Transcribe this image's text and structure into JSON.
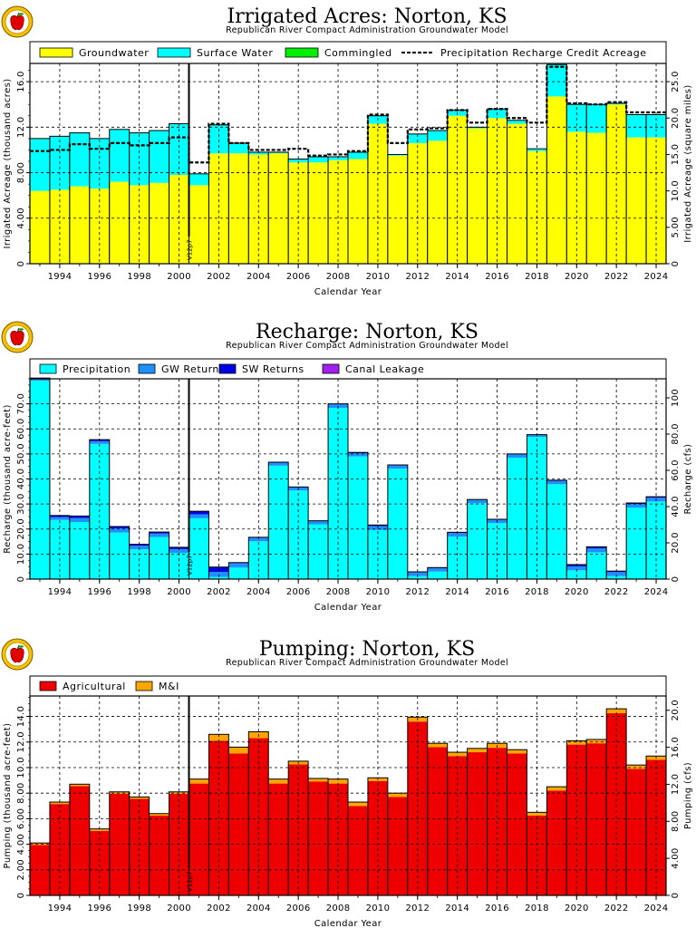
{
  "logo_icon": "apple-logo-icon",
  "colors": {
    "groundwater": "#ffff00",
    "surface_water": "#00ffff",
    "commingled": "#00ee00",
    "precipitation": "#00ffff",
    "gw_returns": "#1e90ff",
    "sw_returns": "#0000e6",
    "canal_leakage": "#a020f0",
    "agricultural": "#ee0000",
    "mandi": "#ffa500"
  },
  "chart_data": [
    {
      "type": "bar",
      "stacked": true,
      "title": "Irrigated Acres: Norton, KS",
      "subtitle": "Republican River Compact Administration Groundwater Model",
      "xlabel": "Calendar Year",
      "ylabel": "Irrigated Acreage (thousand acres)",
      "ylabel_right": "Irrigated Acreage (square miles)",
      "ylim": [
        0,
        17.6
      ],
      "yticks": [
        "0",
        "4.00",
        "8.00",
        "12.0",
        "16.0"
      ],
      "ylim_right": [
        0,
        27.5
      ],
      "yticks_right": [
        "0",
        "5.00",
        "10.0",
        "15.0",
        "20.0",
        "25.0"
      ],
      "grid": true,
      "legend_position": "top",
      "x": [
        1993,
        1994,
        1995,
        1996,
        1997,
        1998,
        1999,
        2000,
        2001,
        2002,
        2003,
        2004,
        2005,
        2006,
        2007,
        2008,
        2009,
        2010,
        2011,
        2012,
        2013,
        2014,
        2015,
        2016,
        2017,
        2018,
        2019,
        2020,
        2021,
        2022,
        2023,
        2024
      ],
      "xtick_labels": [
        "1994",
        "1996",
        "1998",
        "2000",
        "2002",
        "2004",
        "2006",
        "2008",
        "2010",
        "2012",
        "2014",
        "2016",
        "2018",
        "2020",
        "2022",
        "2024"
      ],
      "series": [
        {
          "name": "Groundwater",
          "values": [
            6.4,
            6.5,
            6.8,
            6.6,
            7.2,
            6.9,
            7.1,
            7.8,
            6.9,
            9.7,
            9.7,
            9.6,
            9.7,
            8.9,
            8.9,
            9.1,
            9.2,
            12.3,
            9.5,
            10.6,
            10.8,
            13.0,
            11.9,
            12.8,
            12.3,
            9.9,
            14.7,
            11.6,
            11.5,
            14.0,
            11.1,
            11.1
          ]
        },
        {
          "name": "Surface Water",
          "values": [
            4.6,
            4.7,
            4.7,
            4.4,
            4.6,
            4.6,
            4.6,
            4.5,
            1.0,
            2.5,
            0.9,
            0.2,
            0.1,
            0.3,
            0.5,
            0.3,
            0.6,
            0.7,
            0.1,
            0.8,
            0.9,
            0.5,
            0.1,
            0.8,
            0.3,
            0.2,
            2.8,
            2.4,
            2.5,
            0.1,
            2.0,
            2.0
          ]
        },
        {
          "name": "Commingled",
          "values": [
            0,
            0,
            0,
            0,
            0,
            0,
            0,
            0,
            0,
            0,
            0,
            0,
            0,
            0,
            0,
            0,
            0,
            0,
            0,
            0,
            0,
            0,
            0,
            0,
            0,
            0,
            0,
            0,
            0,
            0,
            0,
            0
          ]
        },
        {
          "name": "Precipitation Recharge Credit Acreage",
          "line": true,
          "values": [
            9.9,
            10.0,
            10.5,
            10.1,
            10.6,
            10.4,
            10.6,
            11.1,
            8.9,
            12.3,
            10.6,
            10.0,
            10.0,
            10.1,
            9.5,
            9.6,
            9.9,
            13.1,
            10.6,
            11.8,
            11.9,
            13.5,
            12.4,
            13.6,
            12.8,
            12.4,
            17.3,
            14.1,
            14.0,
            14.2,
            13.3,
            13.3
          ]
        }
      ],
      "annotation": {
        "label": "V12p7",
        "x": 2000.5
      }
    },
    {
      "type": "bar",
      "stacked": true,
      "title": "Recharge: Norton, KS",
      "subtitle": "Republican River Compact Administration Groundwater Model",
      "xlabel": "Calendar Year",
      "ylabel": "Recharge (thousand acre-feet)",
      "ylabel_right": "Recharge (cfs)",
      "ylim": [
        0,
        80
      ],
      "yticks": [
        "0",
        "10.0",
        "20.0",
        "30.0",
        "40.0",
        "50.0",
        "60.0",
        "70.0"
      ],
      "ylim_right": [
        0,
        110.5
      ],
      "yticks_right": [
        "0",
        "20.0",
        "40.0",
        "60.0",
        "80.0",
        "100"
      ],
      "grid": true,
      "legend_position": "top",
      "x": [
        1993,
        1994,
        1995,
        1996,
        1997,
        1998,
        1999,
        2000,
        2001,
        2002,
        2003,
        2004,
        2005,
        2006,
        2007,
        2008,
        2009,
        2010,
        2011,
        2012,
        2013,
        2014,
        2015,
        2016,
        2017,
        2018,
        2019,
        2020,
        2021,
        2022,
        2023,
        2024
      ],
      "xtick_labels": [
        "1994",
        "1996",
        "1998",
        "2000",
        "2002",
        "2004",
        "2006",
        "2008",
        "2010",
        "2012",
        "2014",
        "2016",
        "2018",
        "2020",
        "2022",
        "2024"
      ],
      "series": [
        {
          "name": "Precipitation",
          "values": [
            79.2,
            23.6,
            22.8,
            54.0,
            18.6,
            11.9,
            16.8,
            10.5,
            24.3,
            0.9,
            4.6,
            15.1,
            45.3,
            35.4,
            21.9,
            68.4,
            49.0,
            19.6,
            44.1,
            1.2,
            3.0,
            17.0,
            30.3,
            22.4,
            48.5,
            56.8,
            37.9,
            3.5,
            10.7,
            1.2,
            28.6,
            31.0
          ]
        },
        {
          "name": "GW Returns",
          "values": [
            0.6,
            1.2,
            1.6,
            1.1,
            1.7,
            1.4,
            1.4,
            1.5,
            1.6,
            2.0,
            1.8,
            1.5,
            1.3,
            1.3,
            1.3,
            1.4,
            1.3,
            1.6,
            1.3,
            1.6,
            1.4,
            1.4,
            1.4,
            1.4,
            1.4,
            0.8,
            1.3,
            1.6,
            1.6,
            1.6,
            1.4,
            1.5
          ]
        },
        {
          "name": "SW Returns",
          "values": [
            0.5,
            0.6,
            0.8,
            0.6,
            0.7,
            0.6,
            0.6,
            0.7,
            1.2,
            1.9,
            0.2,
            0.1,
            0.1,
            0.1,
            0.1,
            0.2,
            0.3,
            0.4,
            0.2,
            0.1,
            0.2,
            0.3,
            0.1,
            0.1,
            0.1,
            0.1,
            0.3,
            0.7,
            0.6,
            0.4,
            0.4,
            0.4
          ]
        },
        {
          "name": "Canal Leakage",
          "values": [
            0,
            0,
            0,
            0,
            0,
            0,
            0,
            0,
            0,
            0,
            0,
            0,
            0,
            0,
            0,
            0,
            0,
            0,
            0,
            0,
            0,
            0,
            0,
            0,
            0,
            0,
            0,
            0,
            0,
            0,
            0,
            0
          ]
        }
      ],
      "annotation": {
        "label": "V12p7",
        "x": 2000.5
      }
    },
    {
      "type": "bar",
      "stacked": true,
      "title": "Pumping: Norton, KS",
      "subtitle": "Republican River Compact Administration Groundwater Model",
      "xlabel": "Calendar Year",
      "ylabel": "Pumping (thousand acre-feet)",
      "ylabel_right": "Pumping (cfs)",
      "ylim": [
        0,
        15.6
      ],
      "yticks": [
        "0",
        "2.00",
        "4.00",
        "6.00",
        "8.00",
        "10.0",
        "12.0",
        "14.0"
      ],
      "ylim_right": [
        0,
        21.54
      ],
      "yticks_right": [
        "0",
        "4.00",
        "8.00",
        "12.0",
        "16.0",
        "20.0"
      ],
      "grid": true,
      "legend_position": "top",
      "x": [
        1993,
        1994,
        1995,
        1996,
        1997,
        1998,
        1999,
        2000,
        2001,
        2002,
        2003,
        2004,
        2005,
        2006,
        2007,
        2008,
        2009,
        2010,
        2011,
        2012,
        2013,
        2014,
        2015,
        2016,
        2017,
        2018,
        2019,
        2020,
        2021,
        2022,
        2023,
        2024
      ],
      "xtick_labels": [
        "1994",
        "1996",
        "1998",
        "2000",
        "2002",
        "2004",
        "2006",
        "2008",
        "2010",
        "2012",
        "2014",
        "2016",
        "2018",
        "2020",
        "2022",
        "2024"
      ],
      "series": [
        {
          "name": "Agricultural",
          "values": [
            3.95,
            7.15,
            8.55,
            5.05,
            7.95,
            7.55,
            6.25,
            7.95,
            8.75,
            12.1,
            11.1,
            12.3,
            8.75,
            10.25,
            8.9,
            8.75,
            7.0,
            8.95,
            7.7,
            13.6,
            11.6,
            10.9,
            11.2,
            11.55,
            11.1,
            6.25,
            8.2,
            11.8,
            11.9,
            14.25,
            9.9,
            10.6
          ]
        },
        {
          "name": "M&I",
          "values": [
            0.15,
            0.15,
            0.15,
            0.15,
            0.15,
            0.15,
            0.15,
            0.15,
            0.35,
            0.5,
            0.5,
            0.5,
            0.35,
            0.25,
            0.25,
            0.35,
            0.3,
            0.25,
            0.3,
            0.35,
            0.3,
            0.3,
            0.3,
            0.35,
            0.3,
            0.25,
            0.3,
            0.3,
            0.3,
            0.35,
            0.3,
            0.3
          ]
        }
      ],
      "annotation": {
        "label": "V12p7",
        "x": 2000.5
      }
    }
  ]
}
